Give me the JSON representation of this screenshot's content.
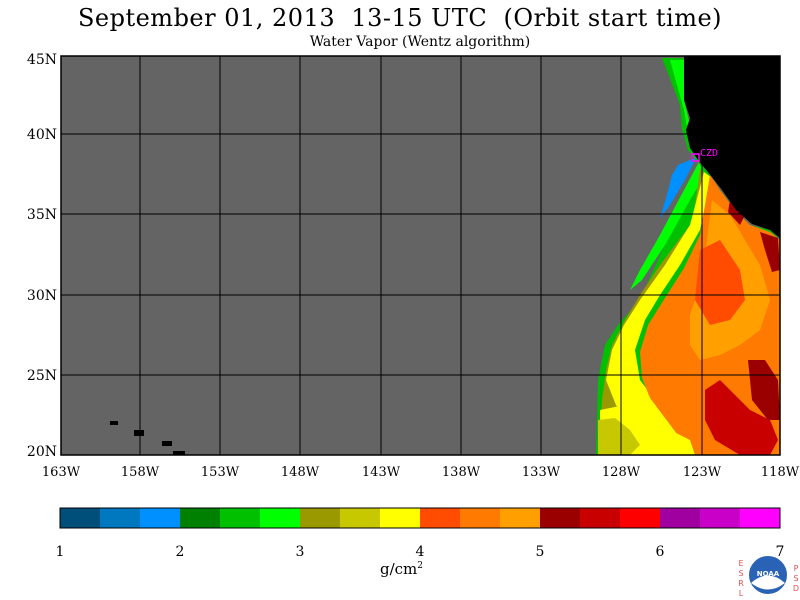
{
  "header": {
    "title": "September 01, 2013  13-15 UTC  (Orbit start time)",
    "subtitle": "Water Vapor (Wentz algorithm)"
  },
  "map": {
    "lat_labels": [
      "45N",
      "40N",
      "35N",
      "30N",
      "25N",
      "20N"
    ],
    "lon_labels": [
      "163W",
      "158W",
      "153W",
      "148W",
      "143W",
      "138W",
      "133W",
      "128W",
      "123W",
      "118W"
    ],
    "station_label": "CZD",
    "colors": {
      "no_data": "#646464",
      "land": "#000000",
      "grid": "#000000",
      "station": "#ff00ff"
    }
  },
  "colorbar": {
    "tick_labels": [
      "1",
      "2",
      "3",
      "4",
      "5",
      "6",
      "7"
    ],
    "units": "g/cm",
    "units_exp": "2",
    "colors": [
      "#004e7a",
      "#0078c0",
      "#0090ff",
      "#008000",
      "#00c000",
      "#00ff00",
      "#9a9a00",
      "#c8c800",
      "#ffff00",
      "#ff4c00",
      "#ff7a00",
      "#ffa000",
      "#9a0000",
      "#c80000",
      "#ff0000",
      "#a000a0",
      "#c800c8",
      "#ff00ff"
    ]
  },
  "logo": {
    "left_text": "ESRL",
    "right_text": "PSD",
    "center_text": "NOAA"
  }
}
